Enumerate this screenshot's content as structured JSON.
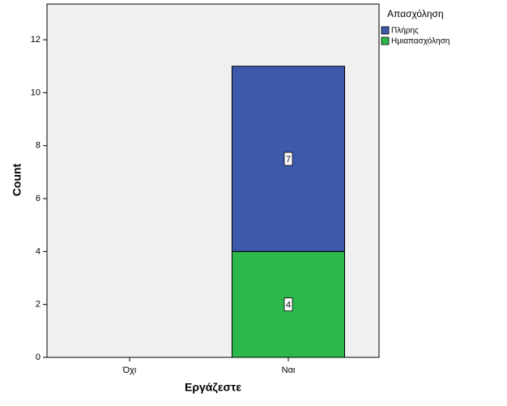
{
  "chart_data": {
    "type": "stacked_bar",
    "x_label": "Εργάζεστε",
    "y_label": "Count",
    "legend_title": "Απασχόληση",
    "categories": [
      "Όχι",
      "Ναι"
    ],
    "series": [
      {
        "name": "Πλήρης",
        "color": "#3d59ab",
        "values": [
          null,
          7
        ]
      },
      {
        "name": "Ημιαπασχόληση",
        "color": "#2db84b",
        "values": [
          null,
          4
        ]
      }
    ],
    "ylim": [
      0,
      13.35
    ],
    "yticks": [
      0,
      2,
      4,
      6,
      8,
      10,
      12
    ]
  }
}
